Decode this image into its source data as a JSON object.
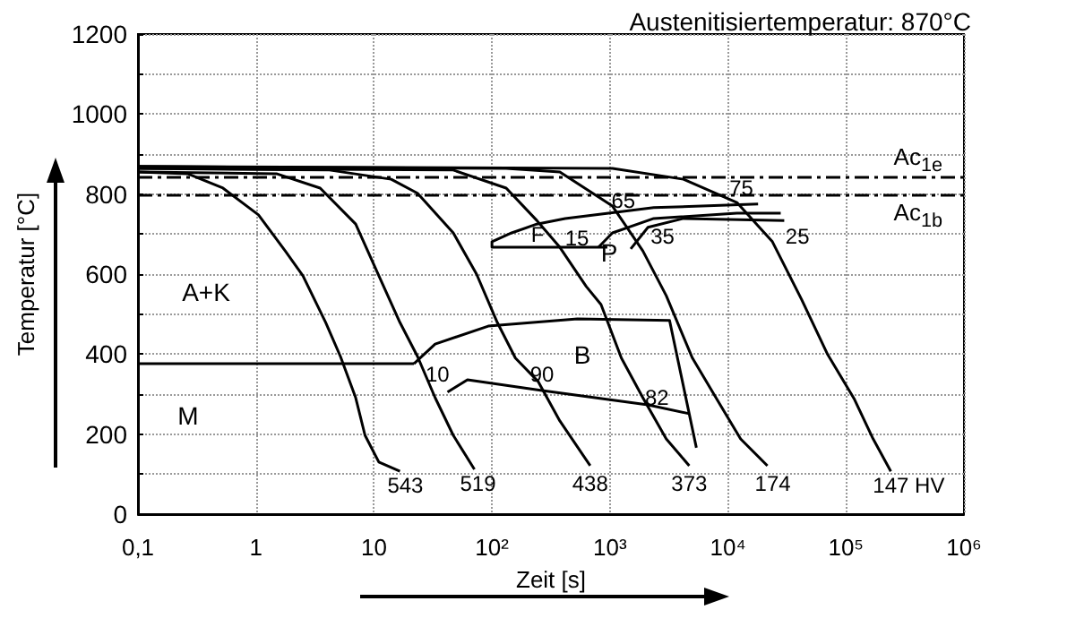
{
  "chart_data": {
    "type": "line",
    "title": "Austenitisiertemperatur: 870°C",
    "xlabel": "Zeit [s]",
    "ylabel": "Temperatur [°C]",
    "log": "x",
    "xlim": [
      0.1,
      1000000
    ],
    "ylim": [
      0,
      1200
    ],
    "xticks": [
      {
        "value": 0.1,
        "label": "0,1"
      },
      1,
      10,
      {
        "value": 100,
        "label": "10²"
      },
      {
        "value": 1000,
        "label": "10³"
      },
      {
        "value": 10000,
        "label": "10⁴"
      },
      {
        "value": 100000,
        "label": "10⁵"
      },
      {
        "value": 1000000,
        "label": "10⁶"
      }
    ],
    "yticks": [
      0,
      {
        "value": 100,
        "label": null
      },
      200,
      {
        "value": 300,
        "label": null
      },
      400,
      {
        "value": 500,
        "label": null
      },
      600,
      {
        "value": 700,
        "label": null
      },
      800,
      {
        "value": 900,
        "label": null
      },
      1000,
      {
        "value": 1100,
        "label": null
      },
      1200
    ],
    "grid": true,
    "marker": "none",
    "series": [
      {
        "color": "#000000",
        "x": [
          0.1,
          0.263,
          0.525,
          1.05,
          1.77,
          2.5,
          3.9,
          5.2,
          7.0,
          8.4,
          11,
          16.6
        ],
        "values": [
          855,
          851,
          815,
          748,
          658,
          596,
          479,
          394,
          291,
          197,
          130,
          107
        ]
      },
      {
        "color": "#000000",
        "x": [
          0.1,
          1.49,
          3.5,
          7.0,
          11,
          16.6,
          23.4,
          33,
          47,
          71
        ],
        "values": [
          855,
          851,
          815,
          725,
          596,
          479,
          394,
          291,
          197,
          112
        ]
      },
      {
        "color": "#000000",
        "x": [
          0.1,
          4.2,
          14,
          23.4,
          47,
          74,
          111,
          158,
          247,
          376,
          680
        ],
        "values": [
          864,
          860,
          837,
          802,
          703,
          600,
          479,
          390,
          331,
          233,
          121
        ]
      },
      {
        "color": "#000000",
        "x": [
          0.1,
          47,
          132,
          240,
          376,
          630,
          840,
          1250,
          1900,
          3000,
          4700
        ],
        "values": [
          864,
          860,
          815,
          734,
          667,
          569,
          524,
          390,
          291,
          188,
          121
        ]
      },
      {
        "color": "#000000",
        "x": [
          0.1,
          132,
          376,
          1050,
          1900,
          3000,
          5000,
          8400,
          12800,
          21600
        ],
        "values": [
          869,
          864,
          855,
          770,
          658,
          546,
          390,
          278,
          188,
          121
        ]
      },
      {
        "color": "#000000",
        "x": [
          0.1,
          1050,
          4200,
          11900,
          23800,
          42000,
          70000,
          118000,
          170000,
          240000
        ],
        "values": [
          869,
          864,
          837,
          779,
          681,
          537,
          399,
          287,
          188,
          107
        ]
      },
      {
        "color": "#000000",
        "x": [
          0.1,
          21.8
        ],
        "values": [
          376,
          376
        ]
      },
      {
        "color": "#000000",
        "x": [
          21.8,
          33,
          93,
          530,
          3200,
          5400
        ],
        "values": [
          376,
          425,
          470,
          488,
          484,
          166
        ]
      },
      {
        "color": "#000000",
        "x": [
          42,
          62,
          266,
          2100,
          4700
        ],
        "values": [
          305,
          336,
          309,
          273,
          251
        ]
      },
      {
        "color": "#000000",
        "x": [
          950,
          100,
          100,
          147,
          240,
          417,
          2350,
          18000
        ],
        "values": [
          667,
          667,
          681,
          703,
          725,
          739,
          766,
          775
        ]
      },
      {
        "color": "#000000",
        "x": [
          800,
          1050,
          2350,
          11900,
          28000
        ],
        "values": [
          667,
          703,
          739,
          752,
          752
        ]
      },
      {
        "color": "#000000",
        "x": [
          1500,
          2100,
          4200,
          30000
        ],
        "values": [
          663,
          717,
          739,
          734
        ]
      }
    ],
    "ref_lines": [
      {
        "axis": "y",
        "value": 842,
        "label": "Ac$_{1e}$",
        "line_style": "dashed",
        "color": "#000000"
      },
      {
        "axis": "y",
        "value": 800,
        "label": "Ac$_{1b}$",
        "line_style": "dashed",
        "color": "#000000"
      }
    ],
    "annotations": [
      "A+K",
      "M",
      "F",
      "P",
      "B",
      {
        "text": "10",
        "x": 30,
        "y": 358
      },
      {
        "text": "90",
        "x": 266,
        "y": 349
      },
      {
        "text": "82",
        "x": 2500,
        "y": 291
      },
      {
        "text": "15",
        "x": 300,
        "y": 726
      },
      {
        "text": "65",
        "x": 1300,
        "y": 784
      },
      {
        "text": "35",
        "x": 1900,
        "y": 658
      },
      {
        "text": "75",
        "x": 13000,
        "y": 815
      },
      {
        "text": "25",
        "x": 23800,
        "y": 681
      },
      {
        "text": "543",
        "x": 16.6,
        "y": 107
      },
      {
        "text": "519",
        "x": 71,
        "y": 112
      },
      {
        "text": "438",
        "x": 680,
        "y": 121
      },
      {
        "text": "373",
        "x": 4700,
        "y": 121
      },
      {
        "text": "174",
        "x": 21600,
        "y": 121
      },
      {
        "text": "147 HV",
        "x": 240000,
        "y": 107
      }
    ]
  }
}
